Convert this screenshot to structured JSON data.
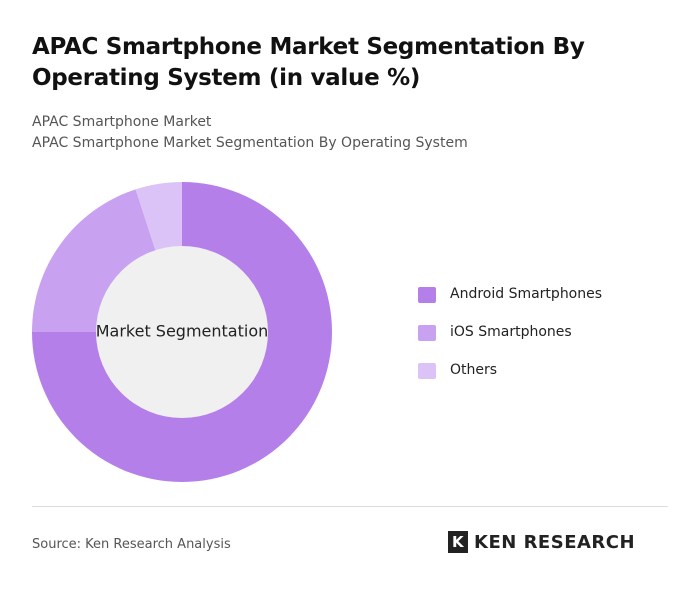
{
  "chart_data": {
    "type": "pie",
    "title": "APAC Smartphone Market Segmentation By Operating System (in value %)",
    "subtitle": [
      "APAC Smartphone Market",
      "APAC Smartphone Market Segmentation By Operating System"
    ],
    "center_label": "Market Segmentation",
    "categories": [
      "Android Smartphones",
      "iOS Smartphones",
      "Others"
    ],
    "values": [
      75,
      20,
      5
    ],
    "colors": [
      "#b57fe9",
      "#c9a1f1",
      "#dcc3f7"
    ],
    "legend": "right"
  },
  "footer": {
    "source": "Source: Ken Research Analysis",
    "logo": "KEN RESEARCH"
  }
}
